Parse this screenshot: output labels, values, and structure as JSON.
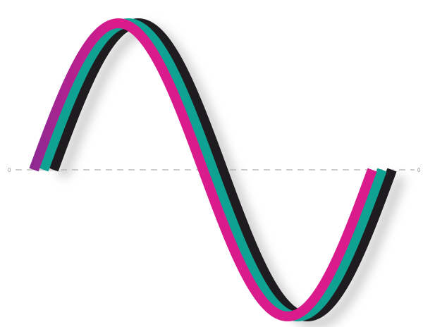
{
  "baseline": {
    "left_label": "0",
    "right_label": "0",
    "line_color": "#cfcfcf"
  },
  "chart_data": {
    "type": "line",
    "xlabel": "",
    "ylabel": "",
    "grid": false,
    "baseline_value": 0,
    "series": [
      {
        "color": "#1e1c1e",
        "shape": "sine wave, one full period, offset right"
      },
      {
        "color": "#0fa293",
        "shape": "sine wave, one full period, middle"
      },
      {
        "color": "#d91b8c",
        "color_end": "#8a2a92",
        "shape": "sine wave, one full period, front"
      }
    ],
    "shadow_color": "#a8a8a8"
  }
}
